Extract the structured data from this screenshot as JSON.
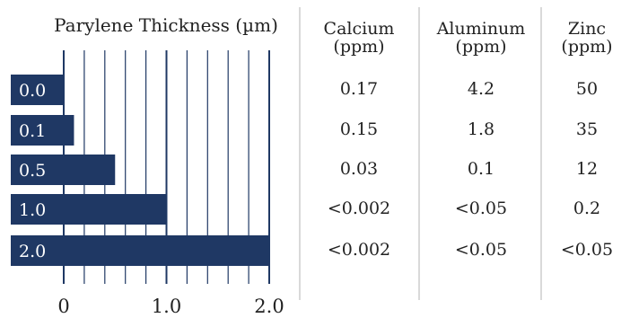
{
  "chart_data": {
    "type": "bar",
    "orientation": "horizontal",
    "title": "Parylene Thickness (µm)",
    "categories": [
      "0.0",
      "0.1",
      "0.5",
      "1.0",
      "2.0"
    ],
    "values": [
      0.0,
      0.1,
      0.5,
      1.0,
      2.0
    ],
    "xlim": [
      0,
      2.0
    ],
    "xticks": [
      "0",
      "1.0",
      "2.0"
    ],
    "grid_step": 0.2,
    "grid": true,
    "bar_color": "#1f3864"
  },
  "table": {
    "columns": [
      {
        "line1": "Calcium",
        "line2": "(ppm)"
      },
      {
        "line1": "Aluminum",
        "line2": "(ppm)"
      },
      {
        "line1": "Zinc",
        "line2": "(ppm)"
      }
    ],
    "rows": [
      [
        "0.17",
        "4.2",
        "50"
      ],
      [
        "0.15",
        "1.8",
        "35"
      ],
      [
        "0.03",
        "0.1",
        "12"
      ],
      [
        "<0.002",
        "<0.05",
        "0.2"
      ],
      [
        "<0.002",
        "<0.05",
        "<0.05"
      ]
    ]
  },
  "colors": {
    "bar": "#1f3864",
    "bar_label": "#ffffff",
    "grid": "#1f3864",
    "separator": "#d9d9d9"
  }
}
